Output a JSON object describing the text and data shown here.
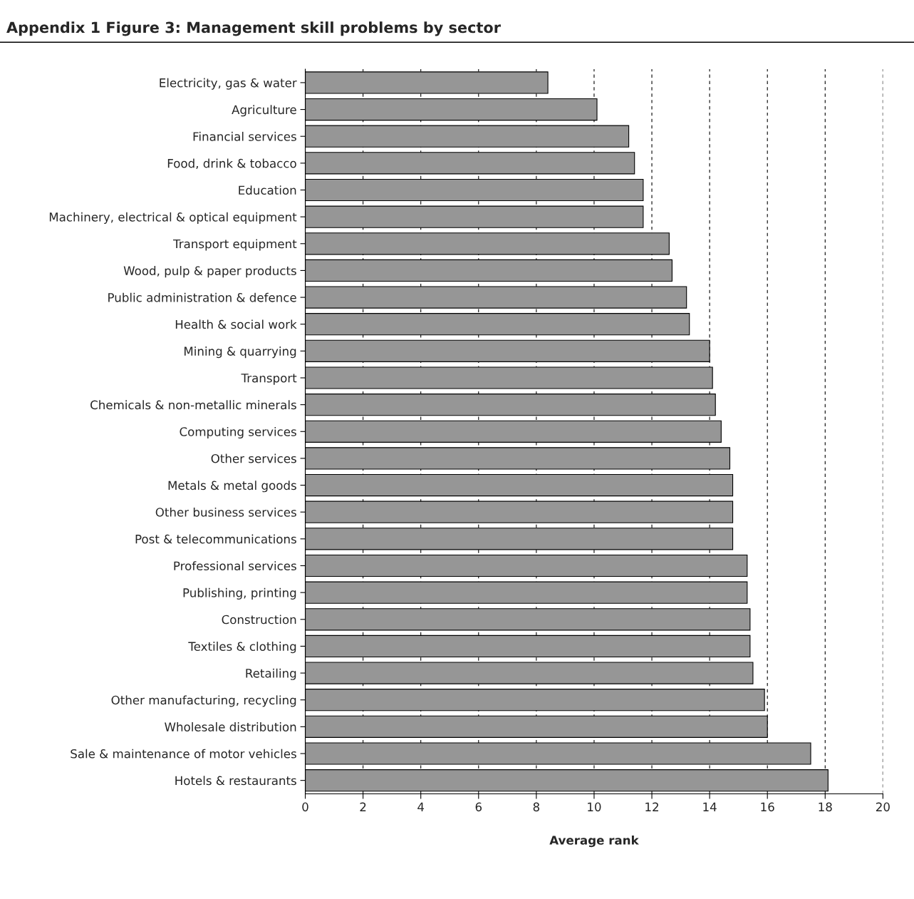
{
  "chart_data": {
    "type": "bar",
    "orientation": "horizontal",
    "title": "Appendix 1 Figure 3: Management skill problems by sector",
    "xlabel": "Average rank",
    "categories": [
      "Electricity, gas & water",
      "Agriculture",
      "Financial services",
      "Food, drink & tobacco",
      "Education",
      "Machinery, electrical & optical equipment",
      "Transport equipment",
      "Wood, pulp & paper products",
      "Public administration & defence",
      "Health & social work",
      "Mining & quarrying",
      "Transport",
      "Chemicals & non-metallic minerals",
      "Computing services",
      "Other services",
      "Metals & metal goods",
      "Other business services",
      "Post & telecommunications",
      "Professional services",
      "Publishing, printing",
      "Construction",
      "Textiles & clothing",
      "Retailing",
      "Other manufacturing, recycling",
      "Wholesale distribution",
      "Sale & maintenance of motor vehicles",
      "Hotels & restaurants"
    ],
    "values": [
      8.4,
      10.1,
      11.2,
      11.4,
      11.7,
      11.7,
      12.6,
      12.7,
      13.2,
      13.3,
      14.0,
      14.1,
      14.2,
      14.4,
      14.7,
      14.8,
      14.8,
      14.8,
      15.3,
      15.3,
      15.4,
      15.4,
      15.5,
      15.9,
      16.0,
      17.5,
      18.1
    ],
    "color": "#969696",
    "xlim": [
      0,
      20
    ],
    "xticks": [
      0,
      2,
      4,
      6,
      8,
      10,
      12,
      14,
      16,
      18,
      20
    ],
    "grid": "x"
  }
}
